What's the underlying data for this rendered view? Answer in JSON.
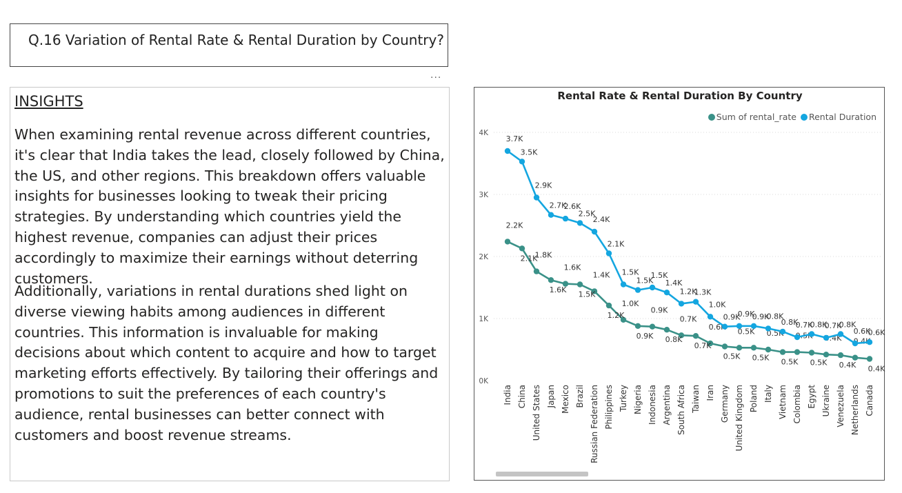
{
  "question_title": "Q.16 Variation of Rental Rate & Rental Duration by Country?",
  "more_options": "...",
  "insights": {
    "heading": "INSIGHTS",
    "paragraph1": "When examining rental revenue across different countries, it's clear that India takes the lead, closely followed by China, the US, and other regions. This breakdown offers valuable insights for businesses looking to tweak their pricing strategies. By understanding which countries yield the highest revenue, companies can adjust their prices accordingly to maximize their earnings without deterring customers.",
    "paragraph2": "Additionally, variations in rental durations shed light on diverse viewing habits among audiences in different countries. This information is invaluable for making decisions about which content to acquire and how to target marketing efforts effectively. By tailoring their offerings and promotions to suit the preferences of each country's audience, rental businesses can better connect with customers and boost revenue streams."
  },
  "chart_data": {
    "type": "line",
    "title": "Rental Rate & Rental Duration By Country",
    "xlabel": "",
    "ylabel": "",
    "ylim": [
      0,
      4000
    ],
    "yticks": [
      0,
      1000,
      2000,
      3000,
      4000
    ],
    "ytick_labels": [
      "0K",
      "1K",
      "2K",
      "3K",
      "4K"
    ],
    "grid": true,
    "legend_position": "top-right",
    "categories": [
      "India",
      "China",
      "United States",
      "Japan",
      "Mexico",
      "Brazil",
      "Russian Federation",
      "Philippines",
      "Turkey",
      "Nigeria",
      "Indonesia",
      "Argentina",
      "South Africa",
      "Taiwan",
      "Iran",
      "Germany",
      "United Kingdom",
      "Poland",
      "Italy",
      "Vietnam",
      "Colombia",
      "Egypt",
      "Ukraine",
      "Venezuela",
      "Netherlands",
      "Canada"
    ],
    "series": [
      {
        "name": "Sum of rental_rate",
        "color": "#3a9188",
        "values": [
          2240,
          2130,
          1760,
          1620,
          1560,
          1550,
          1440,
          1210,
          980,
          880,
          870,
          820,
          730,
          720,
          600,
          550,
          530,
          530,
          500,
          460,
          460,
          450,
          420,
          410,
          370,
          350
        ],
        "labels": [
          "2.2K",
          "2.1K",
          "1.8K",
          "1.6K",
          "1.6K",
          "1.5K",
          "1.4K",
          "1.2K",
          "1.0K",
          "0.9K",
          "0.9K",
          "0.8K",
          "0.7K",
          "0.7K",
          "0.6K",
          "0.5K",
          "0.5K",
          "0.5K",
          "0.5K",
          "0.5K",
          "0.5K",
          "0.5K",
          "0.4K",
          "0.4K",
          "0.4K",
          "0.4K"
        ]
      },
      {
        "name": "Rental Duration",
        "color": "#14a6e0",
        "values": [
          3700,
          3530,
          2950,
          2670,
          2610,
          2540,
          2400,
          2050,
          1550,
          1460,
          1500,
          1420,
          1240,
          1270,
          1030,
          870,
          880,
          880,
          840,
          790,
          700,
          750,
          690,
          750,
          600,
          620
        ],
        "labels": [
          "3.7K",
          "3.5K",
          "2.9K",
          "2.7K",
          "2.6K",
          "2.5K",
          "2.4K",
          "2.1K",
          "1.5K",
          "1.5K",
          "1.5K",
          "1.4K",
          "1.2K",
          "1.3K",
          "1.0K",
          "0.9K",
          "0.9K",
          "0.9K",
          "0.8K",
          "0.8K",
          "0.7K",
          "0.8K",
          "0.7K",
          "0.8K",
          "0.6K",
          "0.6K"
        ]
      }
    ]
  }
}
